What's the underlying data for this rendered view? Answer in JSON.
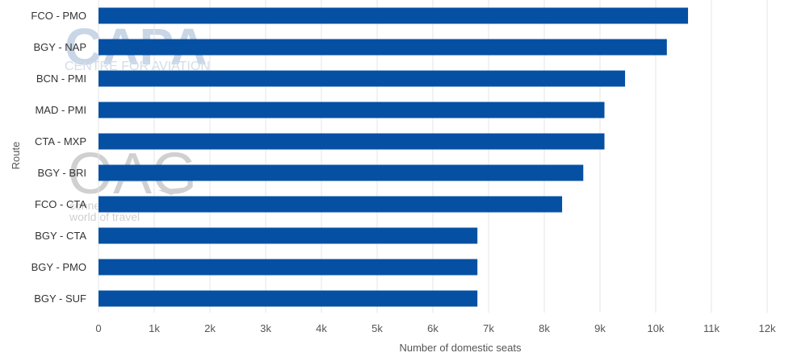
{
  "chart_data": {
    "type": "bar",
    "orientation": "horizontal",
    "categories": [
      "FCO - PMO",
      "BGY - NAP",
      "BCN - PMI",
      "MAD - PMI",
      "CTA - MXP",
      "BGY - BRI",
      "FCO - CTA",
      "BGY - CTA",
      "BGY - PMO",
      "BGY - SUF"
    ],
    "values": [
      10580,
      10200,
      9450,
      9080,
      9080,
      8700,
      8320,
      6800,
      6800,
      6800
    ],
    "xlabel": "Number of domestic seats",
    "ylabel": "Route",
    "xlim": [
      0,
      12000
    ],
    "xticks": [
      0,
      1000,
      2000,
      3000,
      4000,
      5000,
      6000,
      7000,
      8000,
      9000,
      10000,
      11000,
      12000
    ],
    "xtick_labels": [
      "0",
      "1k",
      "2k",
      "3k",
      "4k",
      "5k",
      "6k",
      "7k",
      "8k",
      "9k",
      "10k",
      "11k",
      "12k"
    ],
    "grid": "vertical",
    "bar_color": "#0650a4",
    "grid_color": "#e6e6e6"
  },
  "watermarks": {
    "capa": {
      "logo": "CAPA",
      "tagline": "CENTRE FOR AVIATION"
    },
    "oag": {
      "logo": "OAG",
      "tagline_1": "conne",
      "tagline_2": "world of travel"
    }
  }
}
